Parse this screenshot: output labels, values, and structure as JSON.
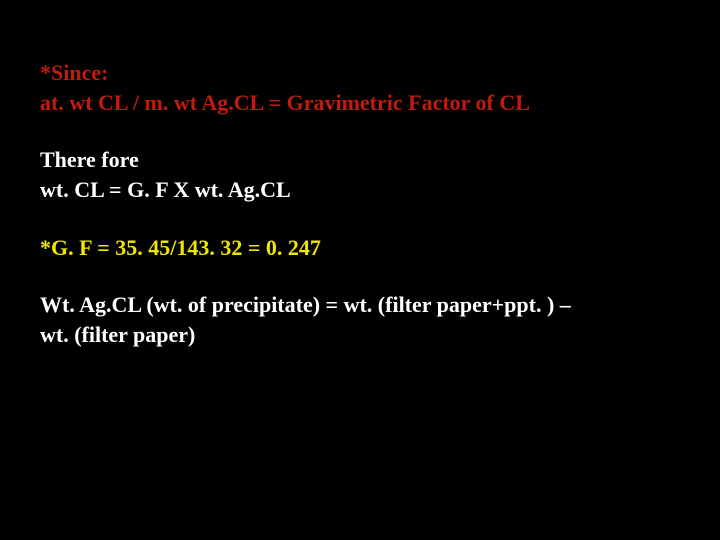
{
  "colors": {
    "background": "#000000",
    "red": "#c01c0a",
    "white": "#ffffff",
    "yellow": "#f2e600"
  },
  "typography": {
    "font_family": "Times New Roman, serif",
    "font_size_pt": 17,
    "font_weight": "bold",
    "line_height": 1.35
  },
  "blocks": [
    {
      "color": "red",
      "lines": [
        "*Since:",
        "at. wt CL / m. wt Ag.CL = Gravimetric Factor of CL"
      ]
    },
    {
      "color": "white",
      "lines": [
        "There fore",
        "wt. CL = G. F   X   wt. Ag.CL"
      ]
    },
    {
      "color": "yellow",
      "lines": [
        "*G. F = 35. 45/143. 32 = 0. 247"
      ]
    },
    {
      "color": "white",
      "lines": [
        "Wt. Ag.CL (wt. of precipitate) = wt. (filter paper+ppt. ) –",
        "wt. (filter paper)"
      ]
    }
  ]
}
